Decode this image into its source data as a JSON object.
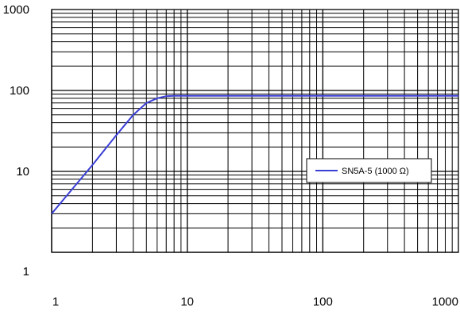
{
  "chart_data": {
    "type": "line",
    "title": "",
    "xlabel": "",
    "ylabel": "",
    "x_scale": "log",
    "y_scale": "log",
    "xlim": [
      1,
      1000
    ],
    "ylim": [
      1,
      1000
    ],
    "grid": true,
    "legend_position": "right",
    "x_tick_labels": [
      "1",
      "10",
      "100",
      "1000"
    ],
    "y_tick_labels": [
      "1",
      "10",
      "100",
      "1000"
    ],
    "series": [
      {
        "name": "SN5A-5 (1000 Ω)",
        "color": "#3b3fd6",
        "x": [
          1,
          2,
          3,
          4,
          5,
          6,
          7,
          8,
          10,
          20,
          50,
          100,
          200,
          500,
          1000
        ],
        "y": [
          3,
          12,
          28,
          50,
          70,
          80,
          85,
          86,
          86,
          86,
          86,
          86,
          86,
          86,
          86
        ]
      }
    ]
  }
}
